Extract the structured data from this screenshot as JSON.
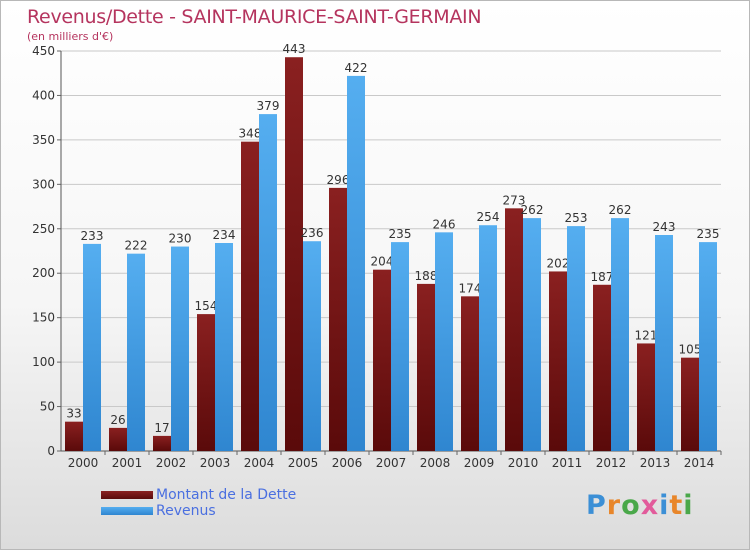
{
  "chart_data": {
    "type": "bar",
    "title": "Revenus/Dette - SAINT-MAURICE-SAINT-GERMAIN",
    "subtitle": "(en milliers d'€)",
    "categories": [
      "2000",
      "2001",
      "2002",
      "2003",
      "2004",
      "2005",
      "2006",
      "2007",
      "2008",
      "2009",
      "2010",
      "2011",
      "2012",
      "2013",
      "2014"
    ],
    "series": [
      {
        "name": "Montant de la Dette",
        "values": [
          33,
          26,
          17,
          154,
          348,
          443,
          296,
          204,
          188,
          174,
          273,
          202,
          187,
          121,
          105
        ],
        "color": "#7a1414"
      },
      {
        "name": "Revenus",
        "values": [
          233,
          222,
          230,
          234,
          379,
          236,
          422,
          235,
          246,
          254,
          262,
          253,
          262,
          243,
          235
        ],
        "color": "#3f9be3"
      }
    ],
    "ylim": [
      0,
      450
    ],
    "yticks": [
      0,
      50,
      100,
      150,
      200,
      250,
      300,
      350,
      400,
      450
    ],
    "grid": true,
    "legend": "bottom-left"
  },
  "logo": {
    "text": "Proxiti",
    "colors": [
      "#3b8fd6",
      "#e8862a",
      "#4aa84a",
      "#e25b9b",
      "#3b8fd6",
      "#e8862a",
      "#4aa84a"
    ]
  }
}
